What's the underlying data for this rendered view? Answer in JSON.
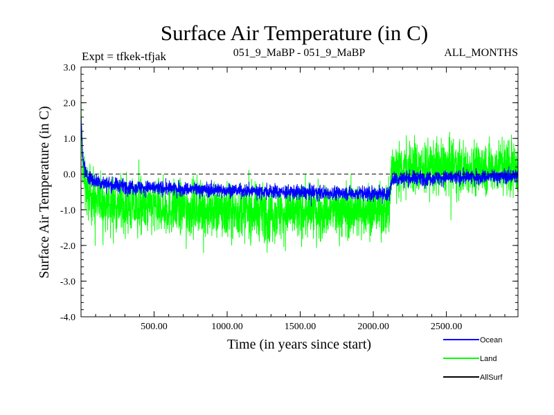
{
  "chart_data": {
    "type": "line",
    "title": "Surface Air Temperature (in C)",
    "subtitle_left": "Expt = tfkek-tfjak",
    "subtitle_center": "051_9_MaBP - 051_9_MaBP",
    "subtitle_right": "ALL_MONTHS",
    "xlabel": "Time (in years since start)",
    "ylabel": "Surface Air Temperature (in C)",
    "xlim": [
      0,
      2990
    ],
    "ylim": [
      -4.0,
      3.0
    ],
    "x_ticks": [
      500,
      1000,
      1500,
      2000,
      2500
    ],
    "x_tick_labels": [
      "500.00",
      "1000.00",
      "1500.00",
      "2000.00",
      "2500.00"
    ],
    "y_ticks": [
      3.0,
      2.0,
      1.0,
      0.0,
      -1.0,
      -2.0,
      -3.0,
      -4.0
    ],
    "y_tick_labels": [
      "3.0",
      "2.0",
      "1.0",
      "0.0",
      "-1.0",
      "-2.0",
      "-3.0",
      "-4.0"
    ],
    "zero_line": {
      "y": 0.0,
      "style": "dashed"
    },
    "legend_placement": "below-right",
    "series": [
      {
        "name": "Land",
        "color": "#00ff00",
        "mean_profile": [
          [
            0,
            1.7
          ],
          [
            5,
            0.9
          ],
          [
            15,
            0.1
          ],
          [
            40,
            -0.5
          ],
          [
            100,
            -0.75
          ],
          [
            200,
            -0.85
          ],
          [
            400,
            -0.95
          ],
          [
            600,
            -0.95
          ],
          [
            800,
            -1.0
          ],
          [
            1000,
            -1.05
          ],
          [
            1200,
            -1.05
          ],
          [
            1400,
            -1.08
          ],
          [
            1600,
            -1.05
          ],
          [
            1800,
            -1.03
          ],
          [
            2000,
            -1.0
          ],
          [
            2110,
            -1.0
          ],
          [
            2125,
            0.15
          ],
          [
            2200,
            0.2
          ],
          [
            2400,
            0.2
          ],
          [
            2600,
            0.15
          ],
          [
            2800,
            0.2
          ],
          [
            2990,
            0.2
          ]
        ],
        "spread": 0.75
      },
      {
        "name": "Ocean",
        "color": "#0000ff",
        "mean_profile": [
          [
            0,
            1.6
          ],
          [
            5,
            1.0
          ],
          [
            15,
            0.35
          ],
          [
            40,
            -0.05
          ],
          [
            100,
            -0.2
          ],
          [
            200,
            -0.3
          ],
          [
            400,
            -0.37
          ],
          [
            600,
            -0.4
          ],
          [
            800,
            -0.43
          ],
          [
            1000,
            -0.45
          ],
          [
            1200,
            -0.47
          ],
          [
            1400,
            -0.5
          ],
          [
            1600,
            -0.52
          ],
          [
            1800,
            -0.53
          ],
          [
            2000,
            -0.55
          ],
          [
            2110,
            -0.55
          ],
          [
            2125,
            -0.15
          ],
          [
            2200,
            -0.12
          ],
          [
            2400,
            -0.1
          ],
          [
            2600,
            -0.09
          ],
          [
            2800,
            -0.07
          ],
          [
            2990,
            -0.05
          ]
        ],
        "spread": 0.2
      },
      {
        "name": "AllSurf",
        "color": "#000000",
        "values": []
      }
    ]
  }
}
